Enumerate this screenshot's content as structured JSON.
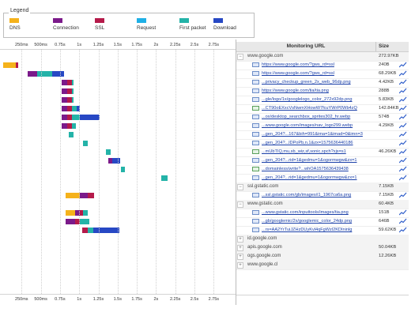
{
  "legend": {
    "title": "Legend",
    "items": [
      {
        "label": "DNS",
        "color": "#f5b21b"
      },
      {
        "label": "Connection",
        "color": "#7b1a8a"
      },
      {
        "label": "SSL",
        "color": "#b51a4a"
      },
      {
        "label": "Request",
        "color": "#1fb0e6"
      },
      {
        "label": "First packet",
        "color": "#24b3a8"
      },
      {
        "label": "Download",
        "color": "#2748c4"
      }
    ]
  },
  "timeline": {
    "ticks": [
      "250ms",
      "500ms",
      "0.75s",
      "1s",
      "1.25s",
      "1.5s",
      "1.75s",
      "2s",
      "2.25s",
      "2.5s",
      "2.75s"
    ],
    "range_ms": [
      0,
      2900
    ],
    "rows": [
      [],
      [
        {
          "phase": 0,
          "start": 10,
          "end": 170
        },
        {
          "phase": 2,
          "start": 170,
          "end": 210
        }
      ],
      [
        {
          "phase": 1,
          "start": 330,
          "end": 450
        },
        {
          "phase": 4,
          "start": 450,
          "end": 650
        },
        {
          "phase": 5,
          "start": 650,
          "end": 800
        }
      ],
      [
        {
          "phase": 1,
          "start": 770,
          "end": 840
        },
        {
          "phase": 2,
          "start": 840,
          "end": 910
        },
        {
          "phase": 4,
          "start": 910,
          "end": 930
        }
      ],
      [
        {
          "phase": 1,
          "start": 770,
          "end": 840
        },
        {
          "phase": 2,
          "start": 840,
          "end": 910
        },
        {
          "phase": 4,
          "start": 910,
          "end": 930
        }
      ],
      [
        {
          "phase": 1,
          "start": 770,
          "end": 840
        },
        {
          "phase": 2,
          "start": 840,
          "end": 910
        },
        {
          "phase": 4,
          "start": 910,
          "end": 930
        }
      ],
      [
        {
          "phase": 1,
          "start": 770,
          "end": 840
        },
        {
          "phase": 2,
          "start": 840,
          "end": 910
        },
        {
          "phase": 4,
          "start": 910,
          "end": 970
        },
        {
          "phase": 5,
          "start": 970,
          "end": 1010
        }
      ],
      [
        {
          "phase": 1,
          "start": 770,
          "end": 840
        },
        {
          "phase": 2,
          "start": 840,
          "end": 910
        },
        {
          "phase": 4,
          "start": 910,
          "end": 1010
        },
        {
          "phase": 5,
          "start": 1010,
          "end": 1270
        }
      ],
      [
        {
          "phase": 1,
          "start": 770,
          "end": 840
        },
        {
          "phase": 2,
          "start": 840,
          "end": 910
        },
        {
          "phase": 4,
          "start": 910,
          "end": 960
        }
      ],
      [
        {
          "phase": 4,
          "start": 860,
          "end": 930
        }
      ],
      [
        {
          "phase": 4,
          "start": 1050,
          "end": 1110
        }
      ],
      [
        {
          "phase": 4,
          "start": 1350,
          "end": 1410
        }
      ],
      [
        {
          "phase": 1,
          "start": 1380,
          "end": 1430
        },
        {
          "phase": 5,
          "start": 1430,
          "end": 1530
        }
      ],
      [
        {
          "phase": 4,
          "start": 1540,
          "end": 1590
        }
      ],
      [
        {
          "phase": 4,
          "start": 2070,
          "end": 2150
        }
      ],
      [],
      [
        {
          "phase": 0,
          "start": 820,
          "end": 1010
        },
        {
          "phase": 1,
          "start": 1010,
          "end": 1110
        },
        {
          "phase": 2,
          "start": 1110,
          "end": 1190
        }
      ],
      [],
      [
        {
          "phase": 0,
          "start": 820,
          "end": 950
        },
        {
          "phase": 1,
          "start": 950,
          "end": 1010
        },
        {
          "phase": 2,
          "start": 1010,
          "end": 1050
        },
        {
          "phase": 4,
          "start": 1050,
          "end": 1110
        }
      ],
      [
        {
          "phase": 1,
          "start": 820,
          "end": 950
        },
        {
          "phase": 2,
          "start": 950,
          "end": 1010
        },
        {
          "phase": 4,
          "start": 1010,
          "end": 1130
        }
      ],
      [
        {
          "phase": 2,
          "start": 1040,
          "end": 1110
        },
        {
          "phase": 4,
          "start": 1110,
          "end": 1180
        },
        {
          "phase": 5,
          "start": 1180,
          "end": 1520
        }
      ],
      [],
      [],
      [],
      []
    ]
  },
  "table": {
    "headers": {
      "url": "Monitoring URL",
      "size": "Size"
    },
    "rows": [
      {
        "type": "domain",
        "toggle": "−",
        "text": "www.google.com",
        "size": "272.97KB"
      },
      {
        "type": "url",
        "icon": "page",
        "text": "https://www.google.com/?gws_rd=ssl",
        "size": "240B",
        "trend": true
      },
      {
        "type": "url",
        "icon": "page",
        "text": "https://www.google.com/?gws_rd=ssl",
        "size": "68.29KB",
        "trend": true
      },
      {
        "type": "url",
        "icon": "page",
        "text": "...privacy_checkup_green_2x_web_96dp.png",
        "size": "4.42KB",
        "trend": true
      },
      {
        "type": "url",
        "icon": "page",
        "text": "https://www.google.com/tia/tia.png",
        "size": "288B",
        "trend": true
      },
      {
        "type": "url",
        "icon": "page",
        "text": "...gle/logo/1x/googlelogo_color_272x92dp.png",
        "size": "5.83KB",
        "trend": true
      },
      {
        "type": "url",
        "icon": "page-green",
        "text": "...CT90oEXxcVsNwmXHowW7fcuYWrP0Wb4zQ",
        "size": "142.84KB",
        "trend": true
      },
      {
        "type": "url",
        "icon": "page",
        "text": "...ox/desktop_searchbox_sprites302_hr.webp",
        "size": "574B",
        "trend": true
      },
      {
        "type": "url",
        "icon": "page",
        "text": "...www.google.com/images/nav_logo299.webp",
        "size": "4.29KB",
        "trend": true
      },
      {
        "type": "url",
        "icon": "page",
        "text": "...gen_204?...167&bih=991&ima=1&imad=0&imn=3",
        "size": "",
        "trend": true
      },
      {
        "type": "url",
        "icon": "page",
        "text": "...gen_204?...lDPoPb,n.1&zx=1575636440186",
        "size": "",
        "trend": true
      },
      {
        "type": "url",
        "icon": "page-green",
        "text": "...mUbTIQ,mu,sb_wiz,sf,sonic,spch?xjs=s1",
        "size": "46.26KB",
        "trend": true
      },
      {
        "type": "url",
        "icon": "page",
        "text": "...gen_204?...rid=1&gedmu=1&ogormwgw&zx=1",
        "size": "",
        "trend": true
      },
      {
        "type": "url",
        "icon": "page-green",
        "text": "...domainless/write?...whOA1575636439438",
        "size": "",
        "trend": true
      },
      {
        "type": "url",
        "icon": "page",
        "text": "...gen_204?...rid=1&gedmu=1&ogormwgw&zx=1",
        "size": "",
        "trend": true
      },
      {
        "type": "domain",
        "toggle": "−",
        "text": "ssl.gstatic.com",
        "size": "7.15KB"
      },
      {
        "type": "url",
        "icon": "page",
        "text": "...ssl.gstatic.com/gb/images/i1_1967ca6a.png",
        "size": "7.15KB",
        "trend": true
      },
      {
        "type": "domain",
        "toggle": "−",
        "text": "www.gstatic.com",
        "size": "60.4KB"
      },
      {
        "type": "url",
        "icon": "page",
        "text": "...www.gstatic.com/inputtools/images/tia.png",
        "size": "151B",
        "trend": true
      },
      {
        "type": "url",
        "icon": "page",
        "text": "...gb/googlemic/2x/googlemic_color_24dp.png",
        "size": "646B",
        "trend": true
      },
      {
        "type": "url",
        "icon": "page",
        "text": "...rs=AA2YrTuiJZHzDUyKvl4qFgWzl2KDIninlg",
        "size": "59.62KB",
        "trend": true
      },
      {
        "type": "domain",
        "toggle": "+",
        "text": "id.google.com",
        "size": ""
      },
      {
        "type": "domain",
        "toggle": "+",
        "text": "apis.google.com",
        "size": "50.04KB"
      },
      {
        "type": "domain",
        "toggle": "+",
        "text": "ogs.google.com",
        "size": "12.26KB"
      },
      {
        "type": "domain",
        "toggle": "+",
        "text": "www.google.cl",
        "size": ""
      }
    ]
  }
}
